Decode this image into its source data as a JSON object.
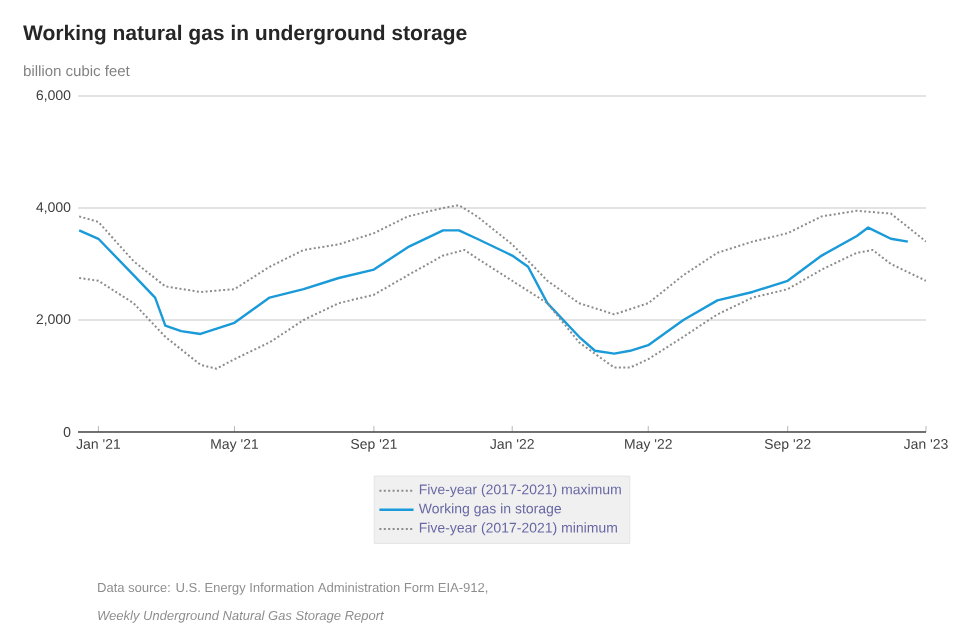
{
  "chart_data": {
    "type": "line",
    "title": "Working natural gas in underground storage",
    "subtitle": "billion cubic feet",
    "annotations": [
      "Data source: U.S. Energy Information Administration Form EIA-912,",
      "Weekly Underground Natural Gas Storage Report"
    ],
    "series": [
      {
        "name": "Five-year (2017-2021) maximum",
        "color": "#8c8c8c",
        "line_style": "dotted",
        "x": [
          "2020-12-15",
          "2021-01-01",
          "2021-02-01",
          "2021-03-01",
          "2021-04-01",
          "2021-05-01",
          "2021-06-01",
          "2021-07-01",
          "2021-08-01",
          "2021-09-01",
          "2021-10-01",
          "2021-11-01",
          "2021-11-15",
          "2021-12-01",
          "2022-01-01",
          "2022-02-01",
          "2022-03-01",
          "2022-04-01",
          "2022-05-01",
          "2022-06-01",
          "2022-07-01",
          "2022-08-01",
          "2022-09-01",
          "2022-10-01",
          "2022-11-01",
          "2022-12-01",
          "2023-01-01"
        ],
        "values": [
          3850,
          3750,
          3050,
          2600,
          2500,
          2550,
          2950,
          3250,
          3350,
          3550,
          3850,
          4000,
          4050,
          3850,
          3350,
          2700,
          2300,
          2100,
          2300,
          2800,
          3200,
          3400,
          3550,
          3850,
          3950,
          3900,
          3400
        ]
      },
      {
        "name": "Working gas in storage",
        "color": "#1a9ad9",
        "line_style": "solid",
        "x": [
          "2020-12-15",
          "2021-01-01",
          "2021-02-01",
          "2021-02-20",
          "2021-03-01",
          "2021-03-15",
          "2021-04-01",
          "2021-05-01",
          "2021-06-01",
          "2021-07-01",
          "2021-08-01",
          "2021-09-01",
          "2021-10-01",
          "2021-11-01",
          "2021-11-15",
          "2021-12-01",
          "2022-01-01",
          "2022-01-15",
          "2022-02-01",
          "2022-03-01",
          "2022-03-15",
          "2022-04-01",
          "2022-04-15",
          "2022-05-01",
          "2022-06-01",
          "2022-07-01",
          "2022-08-01",
          "2022-09-01",
          "2022-10-01",
          "2022-11-01",
          "2022-11-11",
          "2022-12-01",
          "2022-12-16"
        ],
        "values": [
          3600,
          3450,
          2800,
          2400,
          1900,
          1800,
          1750,
          1950,
          2400,
          2550,
          2750,
          2900,
          3300,
          3600,
          3600,
          3450,
          3150,
          2950,
          2300,
          1700,
          1450,
          1400,
          1450,
          1550,
          2000,
          2350,
          2500,
          2700,
          3150,
          3500,
          3650,
          3450,
          3400
        ]
      },
      {
        "name": "Five-year (2017-2021) minimum",
        "color": "#8c8c8c",
        "line_style": "dotted",
        "x": [
          "2020-12-15",
          "2021-01-01",
          "2021-02-01",
          "2021-03-01",
          "2021-04-01",
          "2021-04-15",
          "2021-05-01",
          "2021-06-01",
          "2021-07-01",
          "2021-08-01",
          "2021-09-01",
          "2021-10-01",
          "2021-11-01",
          "2021-11-20",
          "2021-12-01",
          "2022-01-01",
          "2022-02-01",
          "2022-03-01",
          "2022-04-01",
          "2022-04-15",
          "2022-05-01",
          "2022-06-01",
          "2022-07-01",
          "2022-08-01",
          "2022-09-01",
          "2022-10-01",
          "2022-11-01",
          "2022-11-15",
          "2022-12-01",
          "2023-01-01"
        ],
        "values": [
          2750,
          2700,
          2300,
          1700,
          1200,
          1130,
          1300,
          1600,
          2000,
          2300,
          2450,
          2800,
          3150,
          3250,
          3100,
          2700,
          2300,
          1600,
          1150,
          1150,
          1300,
          1700,
          2100,
          2400,
          2550,
          2900,
          3200,
          3250,
          3000,
          2700
        ]
      }
    ],
    "xlim": [
      "2020-12-14",
      "2023-01-01"
    ],
    "xticks": [
      {
        "value": "2021-01-01",
        "label": "Jan '21"
      },
      {
        "value": "2021-05-01",
        "label": "May '21"
      },
      {
        "value": "2021-09-01",
        "label": "Sep '21"
      },
      {
        "value": "2022-01-01",
        "label": "Jan '22"
      },
      {
        "value": "2022-05-01",
        "label": "May '22"
      },
      {
        "value": "2022-09-01",
        "label": "Sep '22"
      },
      {
        "value": "2023-01-01",
        "label": "Jan '23"
      }
    ],
    "ylim": [
      0,
      6000
    ],
    "yticks": [
      0,
      {
        "value": 2000,
        "label": "2,000"
      },
      {
        "value": 4000,
        "label": "4,000"
      },
      {
        "value": 6000,
        "label": "6,000"
      }
    ],
    "grid": "y",
    "legend": "bottom",
    "marker": "none"
  }
}
